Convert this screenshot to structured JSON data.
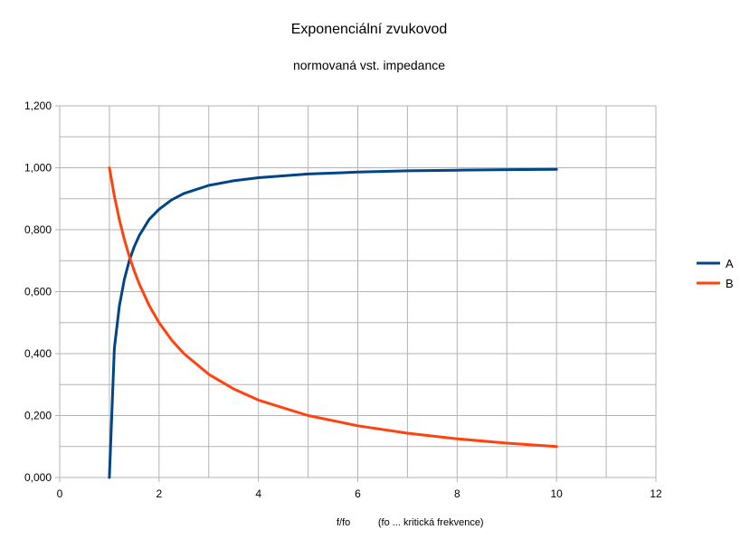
{
  "chart_data": {
    "type": "line",
    "title": "Exponenciální zvukovod",
    "subtitle": "normovaná vst. impedance",
    "xlabel": "f/fo          (fo ... kritická frekvence)",
    "ylabel": "",
    "xlim": [
      0,
      12
    ],
    "ylim": [
      0,
      1.2
    ],
    "x_ticks": [
      "0",
      "2",
      "4",
      "6",
      "8",
      "10",
      "12"
    ],
    "y_ticks": [
      "0,000",
      "0,200",
      "0,400",
      "0,600",
      "0,800",
      "1,000",
      "1,200"
    ],
    "grid": true,
    "legend": "right",
    "series": [
      {
        "name": "A",
        "color": "#004586",
        "x": [
          1,
          1.1,
          1.2,
          1.3,
          1.4,
          1.5,
          1.6,
          1.8,
          2,
          2.25,
          2.5,
          3,
          3.5,
          4,
          5,
          6,
          7,
          8,
          9,
          10
        ],
        "y": [
          0,
          0.417,
          0.553,
          0.639,
          0.7,
          0.745,
          0.781,
          0.833,
          0.866,
          0.896,
          0.917,
          0.943,
          0.958,
          0.968,
          0.98,
          0.986,
          0.99,
          0.992,
          0.994,
          0.995
        ]
      },
      {
        "name": "B",
        "color": "#ff420e",
        "x": [
          1,
          1.1,
          1.2,
          1.3,
          1.4,
          1.5,
          1.6,
          1.8,
          2,
          2.25,
          2.5,
          3,
          3.5,
          4,
          5,
          6,
          7,
          8,
          9,
          10
        ],
        "y": [
          1.0,
          0.909,
          0.833,
          0.769,
          0.714,
          0.667,
          0.625,
          0.556,
          0.5,
          0.444,
          0.4,
          0.333,
          0.286,
          0.25,
          0.2,
          0.167,
          0.143,
          0.125,
          0.111,
          0.1
        ]
      }
    ]
  }
}
